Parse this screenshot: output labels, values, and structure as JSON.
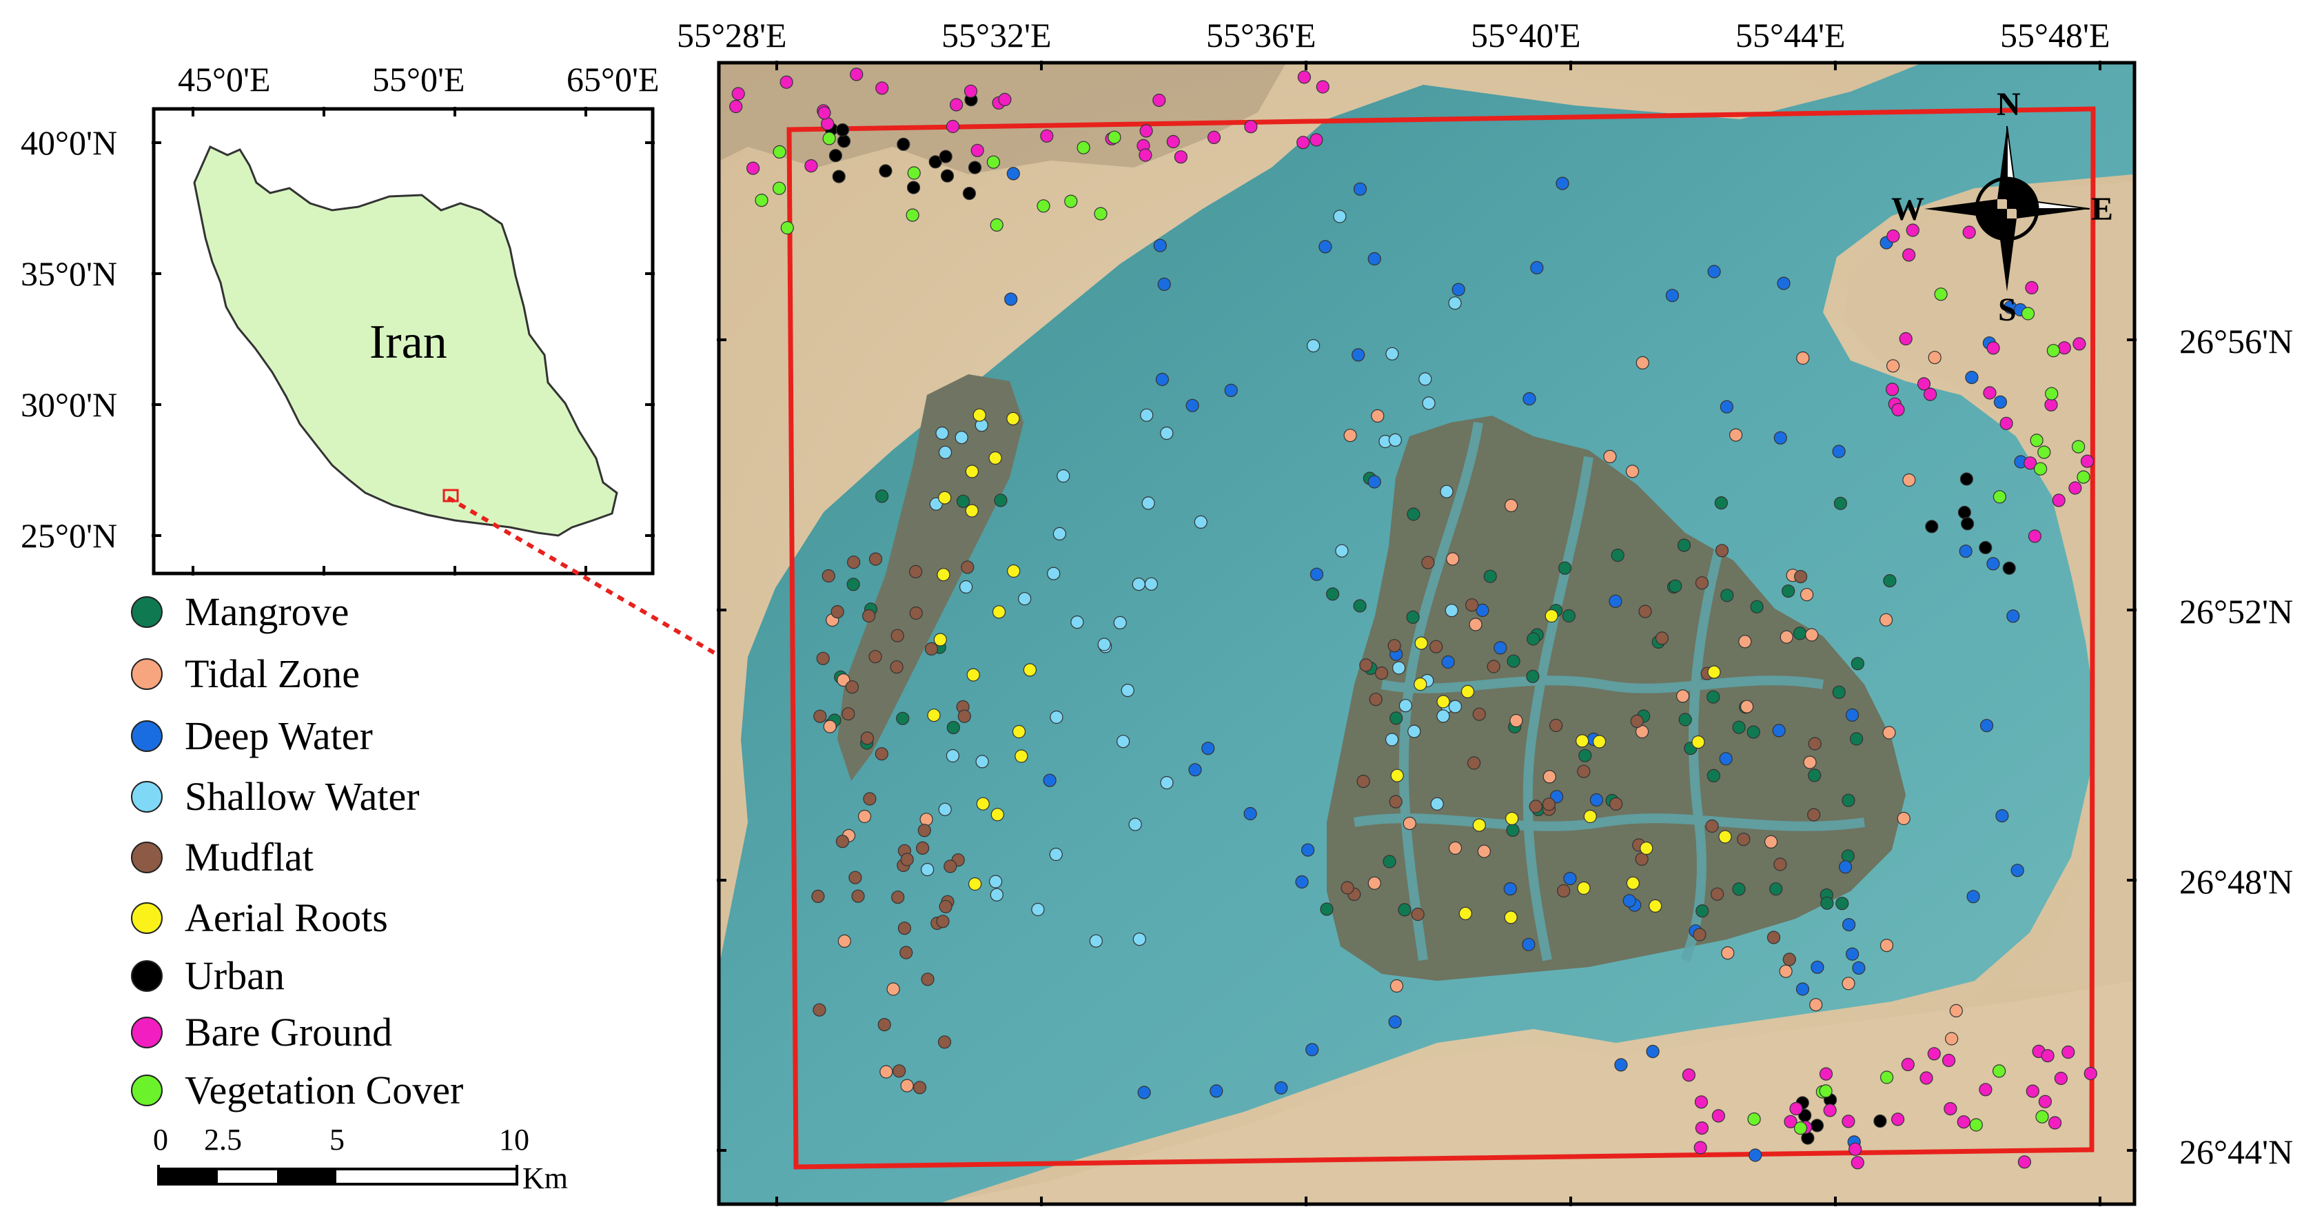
{
  "inset": {
    "country_label": "Iran",
    "lon_labels": [
      "45°0'E",
      "55°0'E",
      "65°0'E"
    ],
    "lat_labels": [
      "40°0'N",
      "35°0'N",
      "30°0'N",
      "25°0'N"
    ],
    "country_fill": "#d8f5c0",
    "locator_color": "#e8211c"
  },
  "main_map": {
    "top_lon_labels": [
      "55°28'E",
      "55°32'E",
      "55°36'E",
      "55°40'E",
      "55°44'E",
      "55°48'E"
    ],
    "right_lat_labels": [
      "26°56'N",
      "26°52'N",
      "26°48'N",
      "26°44'N"
    ],
    "study_area_color": "#e8211c",
    "compass": {
      "n": "N",
      "s": "S",
      "e": "E",
      "w": "W"
    }
  },
  "legend": [
    {
      "label": "Mangrove",
      "color": "#0f7a52"
    },
    {
      "label": "Tidal Zone",
      "color": "#f7a57e"
    },
    {
      "label": "Deep Water",
      "color": "#1a6de0"
    },
    {
      "label": "Shallow Water",
      "color": "#7fd8f5"
    },
    {
      "label": "Mudflat",
      "color": "#8c5a45"
    },
    {
      "label": "Aerial Roots",
      "color": "#fbf21a"
    },
    {
      "label": "Urban",
      "color": "#000000"
    },
    {
      "label": "Bare Ground",
      "color": "#f21ec0"
    },
    {
      "label": "Vegetation Cover",
      "color": "#6bf22a"
    }
  ],
  "scale_bar": {
    "ticks": [
      "0",
      "2.5",
      "5",
      "10"
    ],
    "unit": "Km"
  }
}
